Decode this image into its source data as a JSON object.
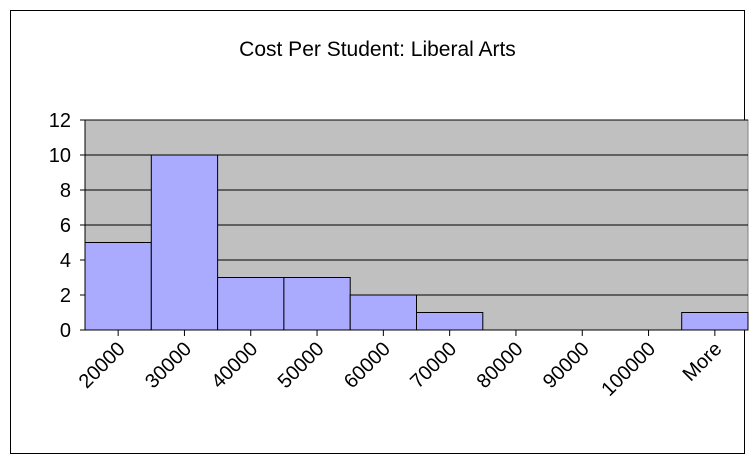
{
  "chart_data": {
    "type": "bar",
    "title": "Cost Per Student: Liberal Arts",
    "xlabel": "",
    "ylabel": "",
    "categories": [
      "20000",
      "30000",
      "40000",
      "50000",
      "60000",
      "70000",
      "80000",
      "90000",
      "100000",
      "More"
    ],
    "values": [
      5,
      10,
      3,
      3,
      2,
      1,
      0,
      0,
      0,
      1
    ],
    "ylim": [
      0,
      12
    ],
    "yticks": [
      0,
      2,
      4,
      6,
      8,
      10,
      12
    ],
    "grid": true,
    "legend": "none",
    "colors": {
      "bar_fill": "#aaaaff",
      "plot_background": "#c0c0c0",
      "gridline": "#000000"
    }
  }
}
